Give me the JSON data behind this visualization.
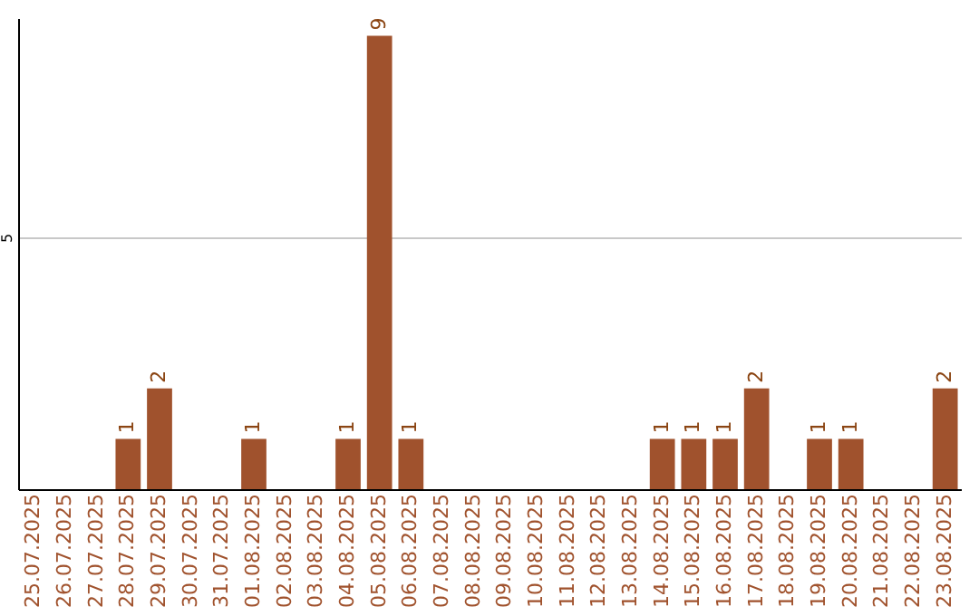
{
  "chart_data": {
    "type": "bar",
    "categories": [
      "25.07.2025",
      "26.07.2025",
      "27.07.2025",
      "28.07.2025",
      "29.07.2025",
      "30.07.2025",
      "31.07.2025",
      "01.08.2025",
      "02.08.2025",
      "03.08.2025",
      "04.08.2025",
      "05.08.2025",
      "06.08.2025",
      "07.08.2025",
      "08.08.2025",
      "09.08.2025",
      "10.08.2025",
      "11.08.2025",
      "12.08.2025",
      "13.08.2025",
      "14.08.2025",
      "15.08.2025",
      "16.08.2025",
      "17.08.2025",
      "18.08.2025",
      "19.08.2025",
      "20.08.2025",
      "21.08.2025",
      "22.08.2025",
      "23.08.2025"
    ],
    "values": [
      0,
      0,
      0,
      1,
      2,
      0,
      0,
      1,
      0,
      0,
      1,
      9,
      1,
      0,
      0,
      0,
      0,
      0,
      0,
      0,
      1,
      1,
      1,
      2,
      0,
      1,
      1,
      0,
      0,
      2
    ],
    "value_labels": [
      null,
      null,
      null,
      "1",
      "2",
      null,
      null,
      "1",
      null,
      null,
      "1",
      "9",
      "1",
      null,
      null,
      null,
      null,
      null,
      null,
      null,
      "1",
      "1",
      "1",
      "2",
      null,
      "1",
      "1",
      null,
      null,
      "2"
    ],
    "color": "#a0522d",
    "ylim": [
      0,
      9.35
    ],
    "yticks": [
      5
    ],
    "grid": "y"
  }
}
